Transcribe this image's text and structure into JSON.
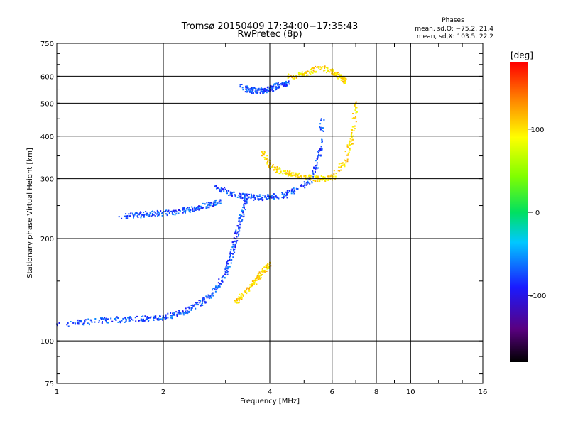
{
  "chart_data": {
    "type": "scatter",
    "title": "Tromsø 20150409 17:34:00−17:35:43",
    "subtitle": "RwPretec (8p)",
    "xlabel": "Frequency [MHz]",
    "ylabel": "Stationary phase Virtual Height [km]",
    "x_scale": "log",
    "y_scale": "log",
    "xlim": [
      1,
      16
    ],
    "ylim": [
      75,
      750
    ],
    "x_ticks": [
      1,
      2,
      4,
      6,
      8,
      10,
      16
    ],
    "y_ticks": [
      75,
      100,
      200,
      300,
      400,
      500,
      600,
      750
    ],
    "grid": true,
    "phase_stats": {
      "title": "Phases",
      "o_line": "mean, sd,O: −75.2, 21.4",
      "x_line": "mean, sd,X: 103.5, 22.2"
    },
    "colorbar": {
      "label": "[deg]",
      "range": [
        -180,
        180
      ],
      "ticks": [
        100,
        0,
        -100
      ],
      "colormap": "rainbow (black-purple-blue-cyan-green-yellow-red)"
    },
    "series": [
      {
        "name": "O",
        "mean_phase": -75.2,
        "traces": [
          {
            "x": [
              1.0,
              1.2,
              1.4,
              1.6,
              1.8,
              2.0,
              2.2,
              2.4,
              2.6,
              2.8,
              3.0
            ],
            "y": [
              112,
              114,
              116,
              116,
              117,
              118,
              121,
              125,
              132,
              142,
              160
            ]
          },
          {
            "x": [
              1.5,
              1.7,
              1.9,
              2.1,
              2.3,
              2.5,
              2.7,
              2.9
            ],
            "y": [
              232,
              236,
              238,
              240,
              243,
              248,
              252,
              260
            ]
          },
          {
            "x": [
              2.8,
              3.1,
              3.4,
              3.7,
              4.0,
              4.4,
              4.8,
              5.2,
              5.5,
              5.6
            ],
            "y": [
              285,
              272,
              267,
              265,
              266,
              270,
              280,
              300,
              350,
              450
            ]
          },
          {
            "x": [
              3.0,
              3.1,
              3.2,
              3.3,
              3.4
            ],
            "y": [
              160,
              180,
              200,
              230,
              260
            ]
          },
          {
            "x": [
              3.3,
              3.5,
              3.7,
              3.9,
              4.1,
              4.3,
              4.5
            ],
            "y": [
              560,
              550,
              545,
              548,
              560,
              570,
              575
            ]
          }
        ]
      },
      {
        "name": "X",
        "mean_phase": 103.5,
        "traces": [
          {
            "x": [
              3.2,
              3.4,
              3.6,
              3.8,
              4.0
            ],
            "y": [
              130,
              140,
              150,
              160,
              170
            ]
          },
          {
            "x": [
              3.8,
              4.0,
              4.3,
              4.6,
              5.0,
              5.5,
              6.0,
              6.5,
              6.8,
              7.0
            ],
            "y": [
              360,
              330,
              315,
              310,
              305,
              300,
              305,
              340,
              400,
              500
            ]
          },
          {
            "x": [
              4.5,
              5.0,
              5.5,
              6.0,
              6.3,
              6.5
            ],
            "y": [
              600,
              610,
              640,
              620,
              600,
              580
            ]
          }
        ]
      }
    ]
  }
}
